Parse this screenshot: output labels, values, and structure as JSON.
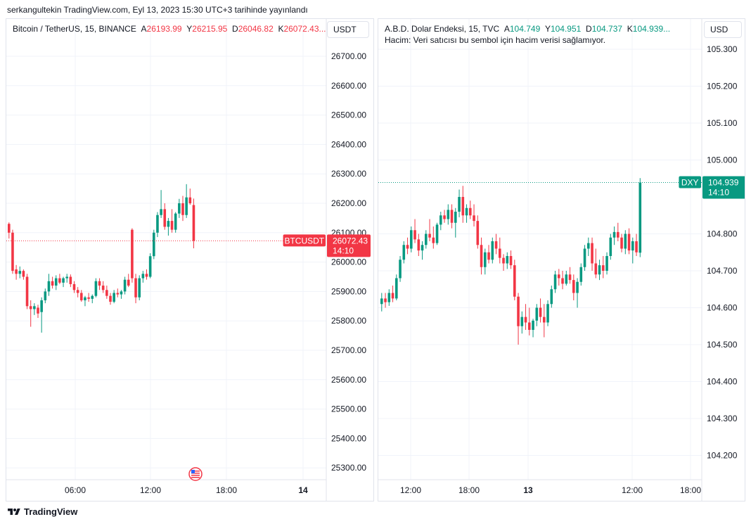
{
  "header": {
    "text": "serkangultekin TradingView.com, Eyl 13, 2023 15:30 UTC+3 tarihinde yayınlandı"
  },
  "footer": {
    "brand": "TradingView"
  },
  "colors": {
    "up": "#089981",
    "down": "#f23645",
    "grid": "#f0f3fa",
    "text": "#131722"
  },
  "left": {
    "legend": {
      "symbol": "Bitcoin / TetherUS, 15, BINANCE",
      "o_label": "A",
      "o_value": "26193.99",
      "h_label": "Y",
      "h_value": "26215.95",
      "l_label": "D",
      "l_value": "26046.82",
      "c_label": "K",
      "c_value": "26072.43..."
    },
    "unit": "USDT"
  },
  "right": {
    "legend": {
      "symbol": "A.B.D. Dolar Endeksi, 15, TVC",
      "o_label": "A",
      "o_value": "104.749",
      "h_label": "Y",
      "h_value": "104.951",
      "l_label": "D",
      "l_value": "104.737",
      "c_label": "K",
      "c_value": "104.939...",
      "volume_note": "Hacim: Veri satıcısı bu sembol için hacim verisi sağlamıyor."
    },
    "unit": "USD"
  },
  "chart_data": [
    {
      "type": "candlestick",
      "title": "Bitcoin / TetherUS, 15, BINANCE",
      "ylim": [
        25200,
        26750
      ],
      "y_ticks": [
        "26700.00",
        "26600.00",
        "26500.00",
        "26400.00",
        "26300.00",
        "26200.00",
        "26100.00",
        "26000.00",
        "25900.00",
        "25800.00",
        "25700.00",
        "25600.00",
        "25500.00",
        "25400.00",
        "25300.00"
      ],
      "x_ticks": [
        "06:00",
        "12:00",
        "18:00",
        "14"
      ],
      "last_price": {
        "symbol": "BTCUSDT",
        "value": "26072.43",
        "timer": "14:10",
        "value_num": 26072.43
      },
      "series": [
        {
          "name": "BTCUSDT",
          "ohlc": [
            [
              26130,
              26135,
              26080,
              26100
            ],
            [
              26100,
              26110,
              25960,
              25970
            ],
            [
              25975,
              25990,
              25940,
              25960
            ],
            [
              25960,
              25985,
              25945,
              25970
            ],
            [
              25970,
              25975,
              25940,
              25950
            ],
            [
              25950,
              25960,
              25840,
              25850
            ],
            [
              25850,
              25870,
              25780,
              25840
            ],
            [
              25840,
              25860,
              25820,
              25850
            ],
            [
              25845,
              25855,
              25810,
              25825
            ],
            [
              25830,
              25880,
              25760,
              25870
            ],
            [
              25870,
              25910,
              25860,
              25900
            ],
            [
              25900,
              25960,
              25885,
              25935
            ],
            [
              25935,
              25950,
              25910,
              25920
            ],
            [
              25920,
              25955,
              25905,
              25945
            ],
            [
              25945,
              25960,
              25925,
              25930
            ],
            [
              25930,
              25950,
              25915,
              25945
            ],
            [
              25945,
              25960,
              25930,
              25950
            ],
            [
              25950,
              25958,
              25915,
              25925
            ],
            [
              25925,
              25935,
              25895,
              25905
            ],
            [
              25905,
              25915,
              25880,
              25895
            ],
            [
              25895,
              25905,
              25865,
              25870
            ],
            [
              25870,
              25885,
              25850,
              25880
            ],
            [
              25880,
              25895,
              25865,
              25875
            ],
            [
              25875,
              25890,
              25860,
              25885
            ],
            [
              25885,
              25945,
              25880,
              25935
            ],
            [
              25935,
              25945,
              25905,
              25920
            ],
            [
              25920,
              25935,
              25895,
              25905
            ],
            [
              25905,
              25920,
              25875,
              25885
            ],
            [
              25885,
              25895,
              25855,
              25865
            ],
            [
              25865,
              25905,
              25860,
              25895
            ],
            [
              25895,
              25910,
              25880,
              25890
            ],
            [
              25890,
              25905,
              25875,
              25900
            ],
            [
              25900,
              25950,
              25890,
              25940
            ],
            [
              25940,
              25960,
              25915,
              25920
            ],
            [
              26110,
              26115,
              25930,
              25945
            ],
            [
              25945,
              25960,
              25860,
              25880
            ],
            [
              25880,
              25955,
              25870,
              25945
            ],
            [
              25945,
              25970,
              25930,
              25960
            ],
            [
              25960,
              25975,
              25940,
              25950
            ],
            [
              25950,
              26030,
              25945,
              26020
            ],
            [
              26020,
              26110,
              26010,
              26100
            ],
            [
              26100,
              26170,
              26085,
              26160
            ],
            [
              26160,
              26245,
              26150,
              26180
            ],
            [
              26180,
              26200,
              26110,
              26120
            ],
            [
              26120,
              26150,
              26090,
              26140
            ],
            [
              26140,
              26180,
              26100,
              26110
            ],
            [
              26110,
              26170,
              26100,
              26165
            ],
            [
              26165,
              26215,
              26150,
              26200
            ],
            [
              26200,
              26225,
              26140,
              26160
            ],
            [
              26160,
              26265,
              26150,
              26220
            ],
            [
              26220,
              26250,
              26195,
              26200
            ],
            [
              26193.99,
              26215.95,
              26046.82,
              26072.43
            ]
          ]
        }
      ]
    },
    {
      "type": "candlestick",
      "title": "A.B.D. Dolar Endeksi, 15, TVC",
      "ylim": [
        104.14,
        105.33
      ],
      "y_ticks": [
        "105.300",
        "105.200",
        "105.100",
        "105.000",
        "104.800",
        "104.700",
        "104.600",
        "104.500",
        "104.400",
        "104.300",
        "104.200"
      ],
      "x_ticks": [
        "12:00",
        "18:00",
        "13",
        "12:00",
        "18:00"
      ],
      "last_price": {
        "symbol": "DXY",
        "value": "104.939",
        "timer": "14:10",
        "value_num": 104.939
      },
      "series": [
        {
          "name": "DXY",
          "ohlc": [
            [
              104.61,
              104.64,
              104.59,
              104.625
            ],
            [
              104.625,
              104.64,
              104.6,
              104.615
            ],
            [
              104.615,
              104.65,
              104.605,
              104.64
            ],
            [
              104.64,
              104.66,
              104.615,
              104.625
            ],
            [
              104.625,
              104.69,
              104.62,
              104.68
            ],
            [
              104.68,
              104.74,
              104.67,
              104.73
            ],
            [
              104.73,
              104.78,
              104.72,
              104.77
            ],
            [
              104.77,
              104.79,
              104.745,
              104.76
            ],
            [
              104.76,
              104.82,
              104.75,
              104.81
            ],
            [
              104.81,
              104.84,
              104.775,
              104.785
            ],
            [
              104.785,
              104.8,
              104.74,
              104.755
            ],
            [
              104.755,
              104.78,
              104.73,
              104.77
            ],
            [
              104.77,
              104.81,
              104.76,
              104.8
            ],
            [
              104.8,
              104.84,
              104.78,
              104.79
            ],
            [
              104.79,
              104.82,
              104.76,
              104.775
            ],
            [
              104.775,
              104.83,
              104.77,
              104.825
            ],
            [
              104.825,
              104.86,
              104.81,
              104.85
            ],
            [
              104.85,
              104.865,
              104.83,
              104.84
            ],
            [
              104.84,
              104.88,
              104.825,
              104.865
            ],
            [
              104.865,
              104.88,
              104.815,
              104.83
            ],
            [
              104.83,
              104.87,
              104.79,
              104.86
            ],
            [
              104.86,
              104.92,
              104.845,
              104.9
            ],
            [
              104.9,
              104.93,
              104.83,
              104.85
            ],
            [
              104.85,
              104.88,
              104.83,
              104.87
            ],
            [
              104.87,
              104.89,
              104.84,
              104.85
            ],
            [
              104.85,
              104.88,
              104.82,
              104.835
            ],
            [
              104.835,
              104.85,
              104.76,
              104.77
            ],
            [
              104.77,
              104.79,
              104.69,
              104.71
            ],
            [
              104.71,
              104.76,
              104.69,
              104.75
            ],
            [
              104.75,
              104.77,
              104.72,
              104.73
            ],
            [
              104.73,
              104.79,
              104.72,
              104.78
            ],
            [
              104.78,
              104.8,
              104.745,
              104.76
            ],
            [
              104.76,
              104.79,
              104.72,
              104.735
            ],
            [
              104.735,
              104.745,
              104.7,
              104.72
            ],
            [
              104.72,
              104.75,
              104.705,
              104.74
            ],
            [
              104.74,
              104.755,
              104.705,
              104.715
            ],
            [
              104.715,
              104.73,
              104.62,
              104.63
            ],
            [
              104.63,
              104.64,
              104.5,
              104.55
            ],
            [
              104.55,
              104.59,
              104.53,
              104.575
            ],
            [
              104.575,
              104.61,
              104.54,
              104.56
            ],
            [
              104.56,
              104.6,
              104.525,
              104.54
            ],
            [
              104.54,
              104.57,
              104.52,
              104.565
            ],
            [
              104.565,
              104.61,
              104.55,
              104.6
            ],
            [
              104.6,
              104.625,
              104.56,
              104.575
            ],
            [
              104.575,
              104.61,
              104.52,
              104.56
            ],
            [
              104.56,
              104.62,
              104.55,
              104.61
            ],
            [
              104.61,
              104.66,
              104.6,
              104.65
            ],
            [
              104.65,
              104.7,
              104.64,
              104.69
            ],
            [
              104.69,
              104.705,
              104.66,
              104.68
            ],
            [
              104.68,
              104.7,
              104.65,
              104.665
            ],
            [
              104.665,
              104.7,
              104.66,
              104.69
            ],
            [
              104.69,
              104.71,
              104.665,
              104.675
            ],
            [
              104.675,
              104.69,
              104.62,
              104.64
            ],
            [
              104.64,
              104.68,
              104.6,
              104.67
            ],
            [
              104.67,
              104.72,
              104.66,
              104.71
            ],
            [
              104.71,
              104.77,
              104.7,
              104.76
            ],
            [
              104.76,
              104.79,
              104.74,
              104.775
            ],
            [
              104.775,
              104.79,
              104.7,
              104.72
            ],
            [
              104.72,
              104.76,
              104.68,
              104.69
            ],
            [
              104.69,
              104.73,
              104.675,
              104.715
            ],
            [
              104.715,
              104.74,
              104.68,
              104.7
            ],
            [
              104.7,
              104.75,
              104.69,
              104.74
            ],
            [
              104.74,
              104.8,
              104.73,
              104.79
            ],
            [
              104.79,
              104.82,
              104.77,
              104.805
            ],
            [
              104.805,
              104.83,
              104.78,
              104.79
            ],
            [
              104.79,
              104.8,
              104.75,
              104.76
            ],
            [
              104.76,
              104.81,
              104.745,
              104.8
            ],
            [
              104.8,
              104.815,
              104.745,
              104.755
            ],
            [
              104.755,
              104.79,
              104.72,
              104.78
            ],
            [
              104.78,
              104.8,
              104.74,
              104.75
            ],
            [
              104.749,
              104.951,
              104.737,
              104.939
            ]
          ]
        }
      ]
    }
  ]
}
